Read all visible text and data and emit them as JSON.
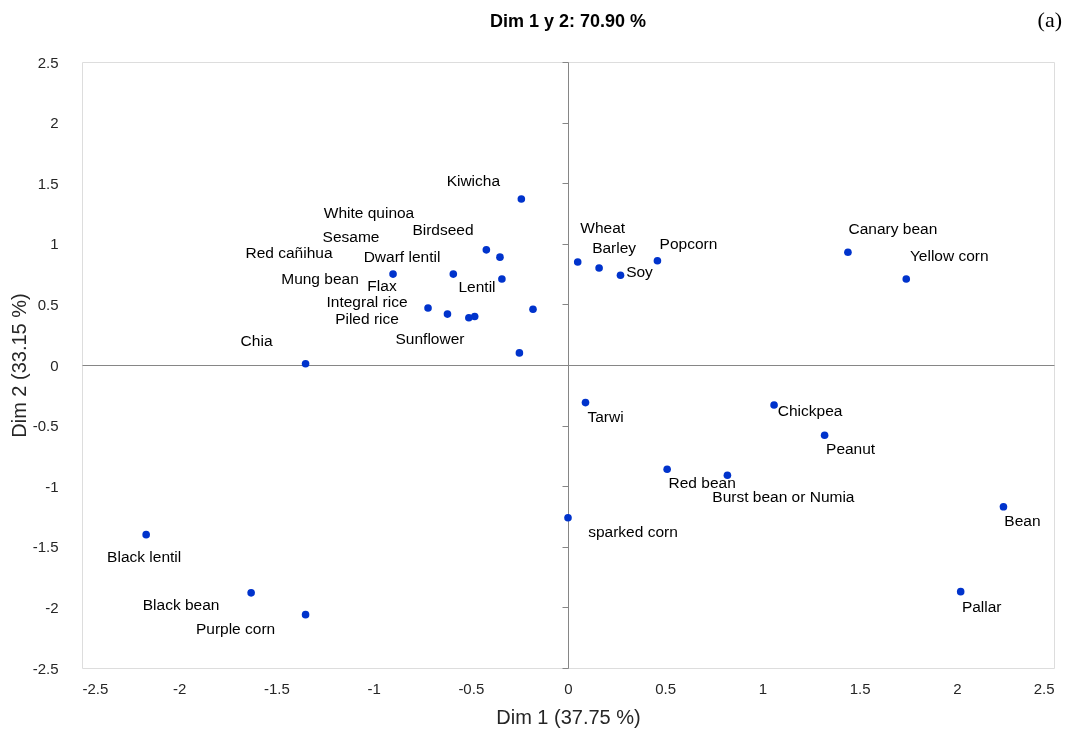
{
  "chart_data": {
    "type": "scatter",
    "title": "Dim 1 y 2: 70.90 %",
    "xlabel": "Dim 1 (37.75 %)",
    "ylabel": "Dim 2 (33.15 %)",
    "x": [
      -0.24,
      -0.42,
      -0.35,
      -0.9,
      -0.59,
      -0.34,
      -0.72,
      -0.62,
      -0.51,
      -0.48,
      -0.18,
      -0.25,
      -1.35,
      0.05,
      0.16,
      0.27,
      0.46,
      1.44,
      1.74,
      0.09,
      1.06,
      1.32,
      0.51,
      0.82,
      0.0,
      2.24,
      2.02,
      -2.17,
      -1.63,
      -1.35
    ],
    "series": [
      {
        "color": "#0033cc",
        "values": [
          1.37,
          0.95,
          0.89,
          0.75,
          0.75,
          0.71,
          0.47,
          0.42,
          0.39,
          0.4,
          0.46,
          0.1,
          0.01,
          0.85,
          0.8,
          0.74,
          0.86,
          0.93,
          0.71,
          -0.31,
          -0.33,
          -0.58,
          -0.86,
          -0.91,
          -1.26,
          -1.17,
          -1.87,
          -1.4,
          -1.88,
          -2.06
        ]
      }
    ],
    "xlim": [
      -2.5,
      2.5
    ],
    "ylim": [
      -2.5,
      2.5
    ],
    "xticks": [
      -2.5,
      -2,
      -1.5,
      -1,
      -0.5,
      0,
      0.5,
      1,
      1.5,
      2,
      2.5
    ],
    "yticks": [
      -2.5,
      -2,
      -1.5,
      -1,
      -0.5,
      0,
      0.5,
      1,
      1.5,
      2,
      2.5
    ],
    "marker": "circle",
    "annotations": [
      "(a)",
      "White quinoa",
      "Birdseed",
      "Sesame",
      "Red cañihua",
      "Dwarf lentil",
      "Mung bean",
      "Flax",
      "Lentil",
      "Integral rice",
      "Piled rice",
      "Sunflower",
      {
        "text": "Kiwicha",
        "x": -0.24,
        "y": 1.37
      },
      {
        "text": "Chia",
        "x": -1.35,
        "y": 0.01
      },
      {
        "text": "Wheat",
        "x": 0.05,
        "y": 0.85
      },
      {
        "text": "Barley",
        "x": 0.16,
        "y": 0.8
      },
      {
        "text": "Soy",
        "x": 0.27,
        "y": 0.74
      },
      {
        "text": "Popcorn",
        "x": 0.46,
        "y": 0.86
      },
      {
        "text": "Canary bean",
        "x": 1.44,
        "y": 0.93
      },
      {
        "text": "Yellow corn",
        "x": 1.74,
        "y": 0.71
      },
      {
        "text": "Tarwi",
        "x": 0.09,
        "y": -0.31
      },
      {
        "text": "Chickpea",
        "x": 1.06,
        "y": -0.33
      },
      {
        "text": "Peanut",
        "x": 1.32,
        "y": -0.58
      },
      {
        "text": "Red bean",
        "x": 0.51,
        "y": -0.86
      },
      {
        "text": "Burst bean or Numia",
        "x": 0.82,
        "y": -0.91
      },
      {
        "text": "sparked corn",
        "x": 0.0,
        "y": -1.26
      },
      {
        "text": "Bean",
        "x": 2.24,
        "y": -1.17
      },
      {
        "text": "Pallar",
        "x": 2.02,
        "y": -1.87
      },
      {
        "text": "Black lentil",
        "x": -2.17,
        "y": -1.4
      },
      {
        "text": "Black bean",
        "x": -1.63,
        "y": -1.88
      },
      {
        "text": "Purple corn",
        "x": -1.35,
        "y": -2.06
      }
    ]
  }
}
